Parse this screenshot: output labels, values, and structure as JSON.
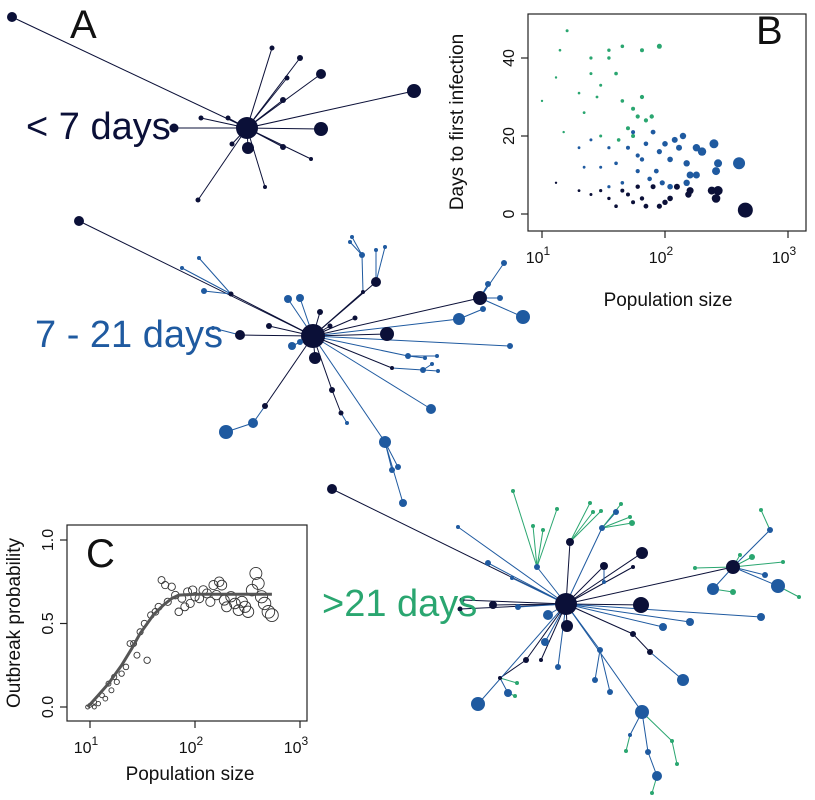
{
  "colors": {
    "short": "#0b1038",
    "mid": "#1f5aa0",
    "long": "#2aa670"
  },
  "panels": {
    "A": {
      "letter": "A",
      "label": "< 7 days"
    },
    "mid": {
      "label": "7 - 21 days"
    },
    "long": {
      "label": ">21 days"
    },
    "B": {
      "letter": "B"
    },
    "C": {
      "letter": "C"
    }
  },
  "chart_data": [
    {
      "type": "scatter",
      "panel": "B",
      "xlabel": "Population size",
      "ylabel": "Days to first infection",
      "xscale": "log",
      "xlim": [
        8,
        1000
      ],
      "ylim": [
        -3,
        50
      ],
      "xticks": [
        {
          "v": 10,
          "label": "10",
          "sup": "1"
        },
        {
          "v": 100,
          "label": "10",
          "sup": "2"
        },
        {
          "v": 1000,
          "label": "10",
          "sup": "3"
        }
      ],
      "yticks": [
        0,
        20,
        40
      ],
      "series": [
        {
          "group": "long",
          "points": [
            {
              "x": 16,
              "y": 47,
              "s": 1.5
            },
            {
              "x": 14,
              "y": 42,
              "s": 1.3
            },
            {
              "x": 13,
              "y": 35,
              "s": 1.2
            },
            {
              "x": 10,
              "y": 29,
              "s": 1.2
            },
            {
              "x": 25,
              "y": 40,
              "s": 1.6
            },
            {
              "x": 25,
              "y": 36,
              "s": 1.5
            },
            {
              "x": 30,
              "y": 33,
              "s": 1.5
            },
            {
              "x": 28,
              "y": 30,
              "s": 1.4
            },
            {
              "x": 20,
              "y": 31,
              "s": 1.3
            },
            {
              "x": 22,
              "y": 26,
              "s": 1.4
            },
            {
              "x": 35,
              "y": 42,
              "s": 1.7
            },
            {
              "x": 40,
              "y": 36,
              "s": 1.8
            },
            {
              "x": 45,
              "y": 29,
              "s": 1.8
            },
            {
              "x": 55,
              "y": 27,
              "s": 2
            },
            {
              "x": 60,
              "y": 25,
              "s": 2.1
            },
            {
              "x": 50,
              "y": 22,
              "s": 2
            },
            {
              "x": 70,
              "y": 24,
              "s": 2.1
            },
            {
              "x": 65,
              "y": 30,
              "s": 2.1
            },
            {
              "x": 90,
              "y": 43,
              "s": 2.5
            },
            {
              "x": 42,
              "y": 19,
              "s": 1.8
            },
            {
              "x": 55,
              "y": 20,
              "s": 2
            },
            {
              "x": 45,
              "y": 43,
              "s": 1.8
            },
            {
              "x": 15,
              "y": 21,
              "s": 1.2
            },
            {
              "x": 30,
              "y": 20,
              "s": 1.5
            },
            {
              "x": 78,
              "y": 25,
              "s": 2.2
            },
            {
              "x": 65,
              "y": 42,
              "s": 2
            },
            {
              "x": 35,
              "y": 40,
              "s": 1.7
            }
          ]
        },
        {
          "group": "mid",
          "points": [
            {
              "x": 20,
              "y": 17,
              "s": 1.4
            },
            {
              "x": 25,
              "y": 19,
              "s": 1.5
            },
            {
              "x": 35,
              "y": 17,
              "s": 1.6
            },
            {
              "x": 40,
              "y": 13,
              "s": 1.8
            },
            {
              "x": 50,
              "y": 17,
              "s": 2
            },
            {
              "x": 55,
              "y": 21,
              "s": 2
            },
            {
              "x": 60,
              "y": 15,
              "s": 2.1
            },
            {
              "x": 70,
              "y": 18,
              "s": 2.3
            },
            {
              "x": 80,
              "y": 21,
              "s": 2.4
            },
            {
              "x": 90,
              "y": 16,
              "s": 2.6
            },
            {
              "x": 100,
              "y": 18,
              "s": 2.8
            },
            {
              "x": 120,
              "y": 19,
              "s": 3
            },
            {
              "x": 140,
              "y": 20,
              "s": 3.2
            },
            {
              "x": 150,
              "y": 13,
              "s": 3.2
            },
            {
              "x": 160,
              "y": 10,
              "s": 3.5
            },
            {
              "x": 180,
              "y": 17,
              "s": 3.7
            },
            {
              "x": 200,
              "y": 16,
              "s": 4.2
            },
            {
              "x": 250,
              "y": 18,
              "s": 4.5
            },
            {
              "x": 260,
              "y": 11,
              "s": 4
            },
            {
              "x": 270,
              "y": 13,
              "s": 4
            },
            {
              "x": 110,
              "y": 14,
              "s": 2.8
            },
            {
              "x": 130,
              "y": 17,
              "s": 3
            },
            {
              "x": 60,
              "y": 11,
              "s": 2.1
            },
            {
              "x": 45,
              "y": 8,
              "s": 1.8
            },
            {
              "x": 30,
              "y": 12,
              "s": 1.5
            },
            {
              "x": 65,
              "y": 14,
              "s": 2.2
            },
            {
              "x": 85,
              "y": 11,
              "s": 2.4
            },
            {
              "x": 95,
              "y": 8,
              "s": 2.6
            },
            {
              "x": 110,
              "y": 7,
              "s": 2.8
            },
            {
              "x": 150,
              "y": 8,
              "s": 3.2
            },
            {
              "x": 180,
              "y": 10,
              "s": 3.5
            },
            {
              "x": 400,
              "y": 13,
              "s": 6
            },
            {
              "x": 35,
              "y": 7,
              "s": 1.6
            },
            {
              "x": 75,
              "y": 9,
              "s": 2.3
            },
            {
              "x": 22,
              "y": 12,
              "s": 1.4
            }
          ]
        },
        {
          "group": "short",
          "points": [
            {
              "x": 13,
              "y": 8,
              "s": 1.2
            },
            {
              "x": 20,
              "y": 6,
              "s": 1.4
            },
            {
              "x": 25,
              "y": 5,
              "s": 1.5
            },
            {
              "x": 30,
              "y": 6,
              "s": 1.6
            },
            {
              "x": 35,
              "y": 4,
              "s": 1.7
            },
            {
              "x": 40,
              "y": 2,
              "s": 1.8
            },
            {
              "x": 45,
              "y": 6,
              "s": 2
            },
            {
              "x": 50,
              "y": 5,
              "s": 2
            },
            {
              "x": 55,
              "y": 3,
              "s": 2
            },
            {
              "x": 60,
              "y": 7,
              "s": 2.2
            },
            {
              "x": 65,
              "y": 4,
              "s": 2.2
            },
            {
              "x": 70,
              "y": 2,
              "s": 2.4
            },
            {
              "x": 80,
              "y": 7,
              "s": 2.5
            },
            {
              "x": 90,
              "y": 2,
              "s": 2.6
            },
            {
              "x": 110,
              "y": 4,
              "s": 2.8
            },
            {
              "x": 125,
              "y": 7,
              "s": 3
            },
            {
              "x": 155,
              "y": 5,
              "s": 3.2
            },
            {
              "x": 160,
              "y": 6,
              "s": 3.5
            },
            {
              "x": 240,
              "y": 6,
              "s": 4
            },
            {
              "x": 260,
              "y": 4,
              "s": 4.3
            },
            {
              "x": 270,
              "y": 6,
              "s": 4.6
            },
            {
              "x": 450,
              "y": 1,
              "s": 7.5
            },
            {
              "x": 100,
              "y": 3,
              "s": 2.7
            }
          ]
        }
      ]
    },
    {
      "type": "scatter",
      "panel": "C",
      "xlabel": "Population size",
      "ylabel": "Outbreak probability",
      "xscale": "log",
      "xlim": [
        7,
        700
      ],
      "ylim": [
        -0.05,
        1.08
      ],
      "xticks": [
        {
          "v": 10,
          "label": "10",
          "sup": "1"
        },
        {
          "v": 100,
          "label": "10",
          "sup": "2"
        },
        {
          "v": 1000,
          "label": "10",
          "sup": "3"
        }
      ],
      "yticks": [
        {
          "v": 0,
          "label": "0.0"
        },
        {
          "v": 0.5,
          "label": "0.5"
        },
        {
          "v": 1,
          "label": "1.0"
        }
      ],
      "points": [
        {
          "x": 9.5,
          "y": 0.0,
          "s": 2
        },
        {
          "x": 10,
          "y": 0.01,
          "s": 2
        },
        {
          "x": 11,
          "y": 0.03,
          "s": 2.2
        },
        {
          "x": 11,
          "y": 0.0,
          "s": 2
        },
        {
          "x": 12,
          "y": 0.02,
          "s": 2.2
        },
        {
          "x": 13,
          "y": 0.07,
          "s": 2.4
        },
        {
          "x": 14,
          "y": 0.05,
          "s": 2.4
        },
        {
          "x": 15,
          "y": 0.14,
          "s": 2.5
        },
        {
          "x": 16,
          "y": 0.1,
          "s": 2.5
        },
        {
          "x": 17,
          "y": 0.18,
          "s": 2.6
        },
        {
          "x": 18,
          "y": 0.15,
          "s": 2.6
        },
        {
          "x": 20,
          "y": 0.2,
          "s": 2.7
        },
        {
          "x": 22,
          "y": 0.24,
          "s": 2.8
        },
        {
          "x": 24,
          "y": 0.38,
          "s": 2.9
        },
        {
          "x": 26,
          "y": 0.38,
          "s": 3
        },
        {
          "x": 28,
          "y": 0.31,
          "s": 3
        },
        {
          "x": 30,
          "y": 0.45,
          "s": 3.1
        },
        {
          "x": 33,
          "y": 0.5,
          "s": 3.2
        },
        {
          "x": 35,
          "y": 0.28,
          "s": 3.2
        },
        {
          "x": 38,
          "y": 0.55,
          "s": 3.3
        },
        {
          "x": 42,
          "y": 0.57,
          "s": 3.4
        },
        {
          "x": 45,
          "y": 0.6,
          "s": 3.5
        },
        {
          "x": 48,
          "y": 0.76,
          "s": 3.5
        },
        {
          "x": 52,
          "y": 0.73,
          "s": 3.6
        },
        {
          "x": 55,
          "y": 0.63,
          "s": 3.6
        },
        {
          "x": 60,
          "y": 0.72,
          "s": 3.7
        },
        {
          "x": 65,
          "y": 0.67,
          "s": 3.8
        },
        {
          "x": 70,
          "y": 0.57,
          "s": 3.8
        },
        {
          "x": 75,
          "y": 0.65,
          "s": 3.9
        },
        {
          "x": 80,
          "y": 0.6,
          "s": 4
        },
        {
          "x": 85,
          "y": 0.69,
          "s": 4
        },
        {
          "x": 90,
          "y": 0.62,
          "s": 4.1
        },
        {
          "x": 95,
          "y": 0.7,
          "s": 4.2
        },
        {
          "x": 100,
          "y": 0.66,
          "s": 4.2
        },
        {
          "x": 110,
          "y": 0.65,
          "s": 4.3
        },
        {
          "x": 120,
          "y": 0.7,
          "s": 4.4
        },
        {
          "x": 130,
          "y": 0.68,
          "s": 4.5
        },
        {
          "x": 140,
          "y": 0.63,
          "s": 4.6
        },
        {
          "x": 150,
          "y": 0.73,
          "s": 4.6
        },
        {
          "x": 160,
          "y": 0.67,
          "s": 4.7
        },
        {
          "x": 170,
          "y": 0.75,
          "s": 4.8
        },
        {
          "x": 180,
          "y": 0.73,
          "s": 4.9
        },
        {
          "x": 190,
          "y": 0.64,
          "s": 5
        },
        {
          "x": 200,
          "y": 0.6,
          "s": 5
        },
        {
          "x": 220,
          "y": 0.66,
          "s": 5.2
        },
        {
          "x": 240,
          "y": 0.62,
          "s": 5.3
        },
        {
          "x": 260,
          "y": 0.58,
          "s": 5.4
        },
        {
          "x": 280,
          "y": 0.63,
          "s": 5.5
        },
        {
          "x": 300,
          "y": 0.6,
          "s": 5.6
        },
        {
          "x": 320,
          "y": 0.57,
          "s": 5.7
        },
        {
          "x": 350,
          "y": 0.7,
          "s": 5.8
        },
        {
          "x": 380,
          "y": 0.8,
          "s": 6
        },
        {
          "x": 400,
          "y": 0.74,
          "s": 6
        },
        {
          "x": 430,
          "y": 0.66,
          "s": 6.1
        },
        {
          "x": 460,
          "y": 0.62,
          "s": 6.2
        },
        {
          "x": 500,
          "y": 0.57,
          "s": 6.3
        },
        {
          "x": 540,
          "y": 0.55,
          "s": 6.4
        }
      ],
      "fit": [
        {
          "x": 9.5,
          "y": 0.0
        },
        {
          "x": 12,
          "y": 0.07
        },
        {
          "x": 15,
          "y": 0.14
        },
        {
          "x": 20,
          "y": 0.25
        },
        {
          "x": 25,
          "y": 0.35
        },
        {
          "x": 30,
          "y": 0.44
        },
        {
          "x": 40,
          "y": 0.55
        },
        {
          "x": 50,
          "y": 0.61
        },
        {
          "x": 60,
          "y": 0.65
        },
        {
          "x": 70,
          "y": 0.67
        },
        {
          "x": 100,
          "y": 0.675
        },
        {
          "x": 200,
          "y": 0.675
        },
        {
          "x": 540,
          "y": 0.675
        }
      ]
    }
  ]
}
